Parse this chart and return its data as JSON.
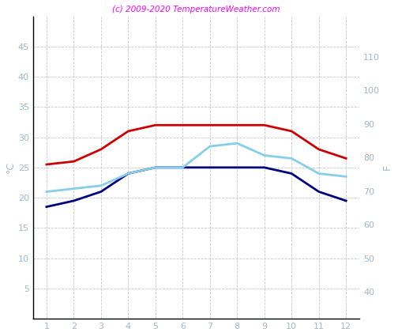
{
  "months": [
    1,
    2,
    3,
    4,
    5,
    6,
    7,
    8,
    9,
    10,
    11,
    12
  ],
  "red_line": [
    25.5,
    26.0,
    28.0,
    31.0,
    32.0,
    32.0,
    32.0,
    32.0,
    32.0,
    31.0,
    28.0,
    26.5
  ],
  "blue_line": [
    18.5,
    19.5,
    21.0,
    24.0,
    25.0,
    25.0,
    25.0,
    25.0,
    25.0,
    24.0,
    21.0,
    19.5
  ],
  "cyan_line": [
    21.0,
    21.5,
    22.0,
    24.0,
    25.0,
    25.0,
    28.5,
    29.0,
    27.0,
    26.5,
    24.0,
    23.5
  ],
  "red_color": "#cc0000",
  "blue_color": "#000080",
  "cyan_color": "#87ceeb",
  "grid_color": "#c8c8c8",
  "tick_color": "#a0b8c8",
  "spine_color": "#000000",
  "title_text": "(c) 2009-2020 TemperatureWeather.com",
  "title_color": "#ff00ff",
  "ylabel_left": "°C",
  "ylabel_right": "F",
  "ylim_left": [
    0,
    50
  ],
  "ylim_right": [
    32,
    122
  ],
  "yticks_left": [
    5,
    10,
    15,
    20,
    25,
    30,
    35,
    40,
    45
  ],
  "yticks_right": [
    40,
    50,
    60,
    70,
    80,
    90,
    100,
    110
  ],
  "xlim": [
    0.5,
    12.5
  ],
  "bg_color": "#ffffff",
  "line_width": 2.0,
  "tick_fontsize": 8,
  "label_fontsize": 9
}
